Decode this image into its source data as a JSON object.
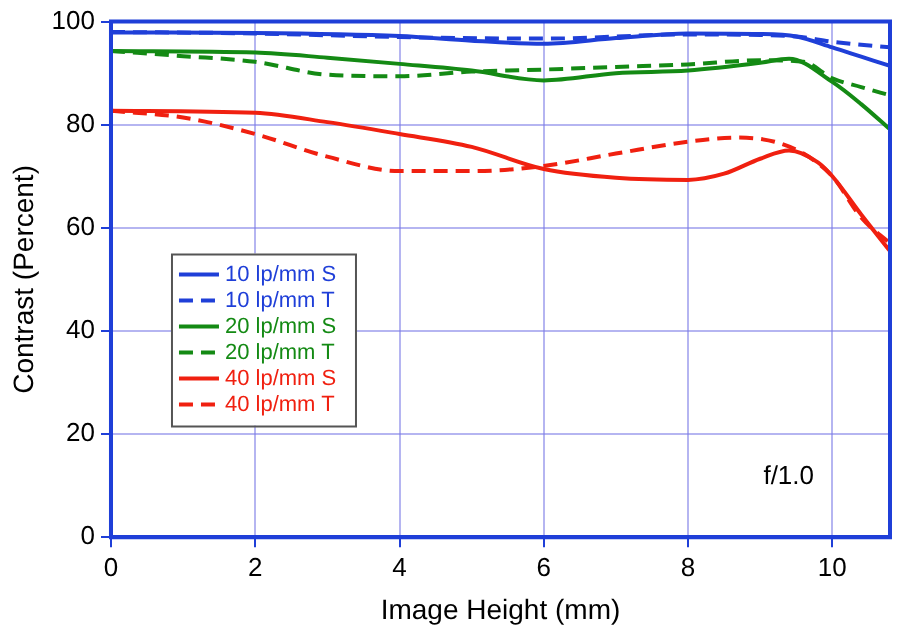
{
  "chart_data": {
    "type": "line",
    "xlabel": "Image Height (mm)",
    "ylabel": "Contrast (Percent)",
    "annotations": [
      "f/1.0"
    ],
    "xlim": [
      0,
      10.8
    ],
    "xticks": [
      0,
      2,
      4,
      6,
      8,
      10
    ],
    "ylim": [
      0,
      100
    ],
    "yticks": [
      0,
      20,
      40,
      60,
      80,
      100
    ],
    "grid": true,
    "legend": "bottom left",
    "marker": "none",
    "series": [
      {
        "name": "10 lp/mm S",
        "color": "#1f3fd8",
        "line_style": "solid",
        "x": [
          0,
          2,
          4,
          5,
          6,
          7,
          8,
          9,
          9.5,
          10,
          10.4,
          10.8
        ],
        "values": [
          97.9,
          97.8,
          97.2,
          96.3,
          95.7,
          96.8,
          97.7,
          97.6,
          97.1,
          95,
          93.2,
          91.4
        ]
      },
      {
        "name": "10 lp/mm T",
        "color": "#1f3fd8",
        "line_style": "dashed",
        "x": [
          0,
          2,
          4,
          6,
          8,
          9,
          9.5,
          10,
          10.4,
          10.8
        ],
        "values": [
          98,
          97.7,
          97,
          96.7,
          97.5,
          97.4,
          97.1,
          96.1,
          95.5,
          95
        ]
      },
      {
        "name": "20 lp/mm S",
        "color": "#148a14",
        "line_style": "solid",
        "x": [
          0,
          2,
          3,
          4,
          5,
          6,
          7,
          8,
          9,
          9.4,
          10,
          10.4,
          10.8
        ],
        "values": [
          94.3,
          94,
          93,
          91.8,
          90.5,
          88.6,
          90,
          90.5,
          92,
          92.8,
          88.3,
          84,
          79.1
        ]
      },
      {
        "name": "20 lp/mm T",
        "color": "#148a14",
        "line_style": "dashed",
        "x": [
          0,
          1,
          2,
          3,
          4,
          5,
          6,
          7,
          8,
          9,
          9.6,
          10,
          10.4,
          10.8
        ],
        "values": [
          94.3,
          93.3,
          92.2,
          89.7,
          89.4,
          90.3,
          90.7,
          91.2,
          91.7,
          92.5,
          92.2,
          89,
          87.3,
          85.7
        ]
      },
      {
        "name": "40 lp/mm S",
        "color": "#f02010",
        "line_style": "solid",
        "x": [
          0,
          2,
          3,
          4,
          5,
          6,
          7,
          8,
          8.5,
          9,
          9.4,
          9.8,
          10,
          10.4,
          10.8
        ],
        "values": [
          82.7,
          82.3,
          80.5,
          78.2,
          75.7,
          71.4,
          69.7,
          69.3,
          70.5,
          73.4,
          75,
          72.7,
          70,
          62.6,
          55.5
        ]
      },
      {
        "name": "40 lp/mm T",
        "color": "#f02010",
        "line_style": "dashed",
        "x": [
          0,
          1,
          2,
          3,
          4,
          5,
          6,
          7,
          8,
          8.7,
          9.2,
          9.6,
          10,
          10.4,
          10.8
        ],
        "values": [
          82.7,
          81.4,
          78.2,
          73.8,
          71,
          71,
          72,
          74.4,
          76.7,
          77.5,
          76.7,
          74.4,
          70,
          62,
          57
        ]
      }
    ]
  }
}
